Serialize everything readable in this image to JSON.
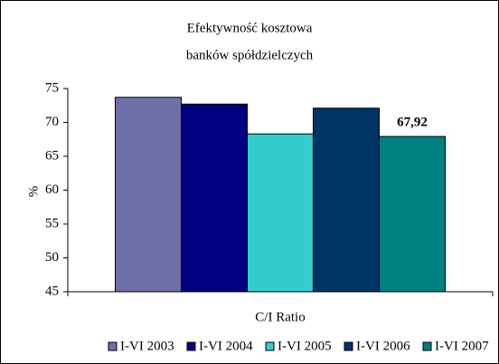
{
  "chart_data": {
    "type": "bar",
    "title": [
      "Efektywność kosztowa",
      "banków spółdzielczych"
    ],
    "y_label": "%",
    "x_label": "C/I Ratio",
    "categories": [
      "C/I Ratio"
    ],
    "series": [
      {
        "name": "I-VI 2003",
        "color": "#6f6fa8",
        "values": [
          73.7
        ]
      },
      {
        "name": "I-VI 2004",
        "color": "#000080",
        "values": [
          72.7
        ]
      },
      {
        "name": "I-VI 2005",
        "color": "#33cccc",
        "values": [
          68.3
        ]
      },
      {
        "name": "I-VI 2006",
        "color": "#003366",
        "values": [
          72.1
        ]
      },
      {
        "name": "I-VI 2007",
        "color": "#008080",
        "values": [
          67.92
        ],
        "value_labels": [
          "67,92"
        ]
      }
    ],
    "ylim": [
      45,
      75
    ],
    "yticks": [
      45,
      50,
      55,
      60,
      65,
      70,
      75
    ],
    "legend": "bottom"
  }
}
